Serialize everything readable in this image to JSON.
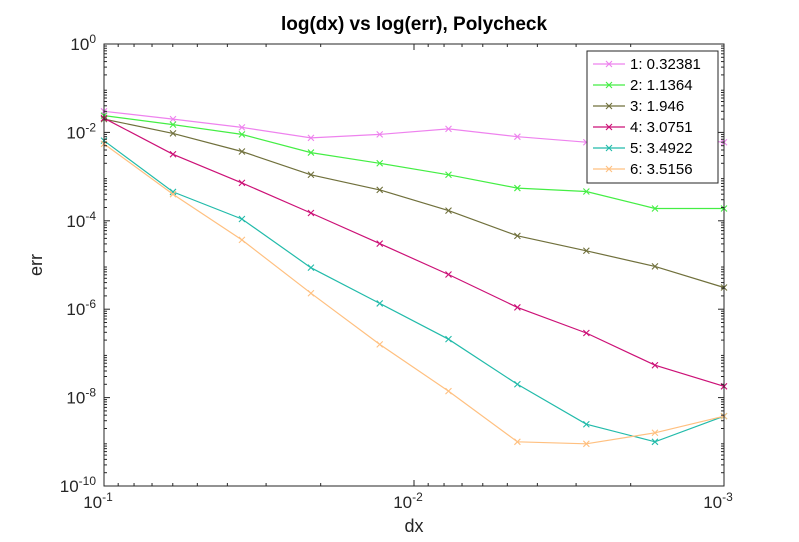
{
  "chart_data": {
    "type": "line",
    "title": "log(dx) vs log(err), Polycheck",
    "xlabel": "dx",
    "ylabel": "err",
    "xscale": "log",
    "yscale": "log",
    "x_reversed": true,
    "xlim": [
      0.001,
      0.1
    ],
    "ylim": [
      1e-10,
      1
    ],
    "grid": false,
    "legend_position": "top-right",
    "x_ticks": [
      {
        "value": 0.1,
        "base": "10",
        "exp": "-1"
      },
      {
        "value": 0.01,
        "base": "10",
        "exp": "-2"
      },
      {
        "value": 0.001,
        "base": "10",
        "exp": "-3"
      }
    ],
    "y_ticks": [
      {
        "value": 1e-10,
        "base": "10",
        "exp": "-10"
      },
      {
        "value": 1e-08,
        "base": "10",
        "exp": "-8"
      },
      {
        "value": 1e-06,
        "base": "10",
        "exp": "-6"
      },
      {
        "value": 0.0001,
        "base": "10",
        "exp": "-4"
      },
      {
        "value": 0.01,
        "base": "10",
        "exp": "-2"
      },
      {
        "value": 1,
        "base": "10",
        "exp": "0"
      }
    ],
    "x": [
      0.1,
      0.0599,
      0.0359,
      0.0215,
      0.0129,
      0.00774,
      0.00464,
      0.00278,
      0.00167,
      0.001
    ],
    "series": [
      {
        "name": "1: 0.32381",
        "color": "#ee82ee",
        "values": [
          0.03,
          0.02,
          0.013,
          0.0075,
          0.009,
          0.012,
          0.008,
          0.006,
          0.008,
          0.006
        ]
      },
      {
        "name": "2: 1.1364",
        "color": "#44ee44",
        "values": [
          0.024,
          0.015,
          0.009,
          0.0035,
          0.002,
          0.0011,
          0.00055,
          0.00046,
          0.00019,
          0.00019
        ]
      },
      {
        "name": "3: 1.946",
        "color": "#70703c",
        "values": [
          0.02,
          0.0095,
          0.0037,
          0.0011,
          0.0005,
          0.00017,
          4.57e-05,
          2.1e-05,
          9.3e-06,
          3.1e-06
        ]
      },
      {
        "name": "4: 3.0751",
        "color": "#cc1177",
        "values": [
          0.021,
          0.0032,
          0.00072,
          0.00015,
          3.05e-05,
          6.1e-06,
          1.1e-06,
          2.9e-07,
          5.4e-08,
          1.8e-08
        ]
      },
      {
        "name": "5: 3.4922",
        "color": "#22bbaa",
        "values": [
          0.0065,
          0.00045,
          0.00011,
          8.7e-06,
          1.35e-06,
          2.1e-07,
          2e-08,
          2.5e-09,
          1e-09,
          3.8e-09
        ]
      },
      {
        "name": "6: 3.5156",
        "color": "#ffc080",
        "values": [
          0.0055,
          0.0004,
          3.7e-05,
          2.3e-06,
          1.6e-07,
          1.4e-08,
          1e-09,
          9e-10,
          1.6e-09,
          3.8e-09
        ]
      }
    ]
  }
}
